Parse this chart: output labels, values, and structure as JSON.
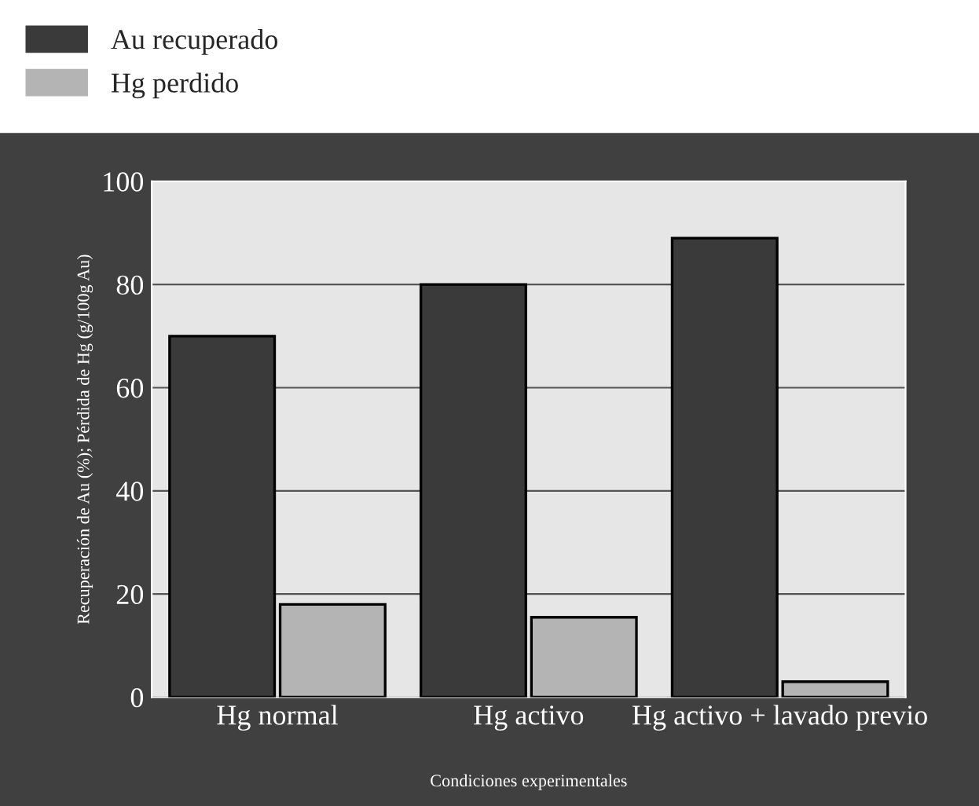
{
  "chart_data": {
    "type": "bar",
    "xlabel": "Condiciones experimentales",
    "ylabel": "Recuperación de Au (%); Pérdida de Hg (g/100g Au)",
    "categories": [
      "Hg normal",
      "Hg activo",
      "Hg activo + lavado previo"
    ],
    "series": [
      {
        "name": "Au recuperado",
        "color": "#3a3a3a",
        "values": [
          70,
          80,
          89
        ]
      },
      {
        "name": "Hg perdido",
        "color": "#b4b4b4",
        "values": [
          18,
          15.5,
          3
        ]
      }
    ],
    "ylim": [
      0,
      100
    ],
    "yticks": [
      0,
      20,
      40,
      60,
      80,
      100
    ],
    "grid": "y",
    "legend": "top left"
  }
}
